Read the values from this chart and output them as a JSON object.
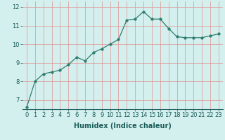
{
  "x": [
    0,
    1,
    2,
    3,
    4,
    5,
    6,
    7,
    8,
    9,
    10,
    11,
    12,
    13,
    14,
    15,
    16,
    17,
    18,
    19,
    20,
    21,
    22,
    23
  ],
  "y": [
    6.6,
    8.0,
    8.4,
    8.5,
    8.6,
    8.9,
    9.3,
    9.1,
    9.55,
    9.75,
    10.0,
    10.25,
    11.3,
    11.35,
    11.75,
    11.35,
    11.35,
    10.85,
    10.4,
    10.35,
    10.35,
    10.35,
    10.45,
    10.55
  ],
  "line_color": "#2e7d6e",
  "marker": "o",
  "marker_size": 2.5,
  "background_color": "#d4f0ee",
  "grid_color": "#e08888",
  "xlabel": "Humidex (Indice chaleur)",
  "xlabel_fontsize": 7,
  "tick_fontsize": 6,
  "ylim": [
    6.5,
    12.3
  ],
  "xlim": [
    -0.5,
    23.5
  ],
  "yticks": [
    7,
    8,
    9,
    10,
    11,
    12
  ],
  "xticks": [
    0,
    1,
    2,
    3,
    4,
    5,
    6,
    7,
    8,
    9,
    10,
    11,
    12,
    13,
    14,
    15,
    16,
    17,
    18,
    19,
    20,
    21,
    22,
    23
  ]
}
